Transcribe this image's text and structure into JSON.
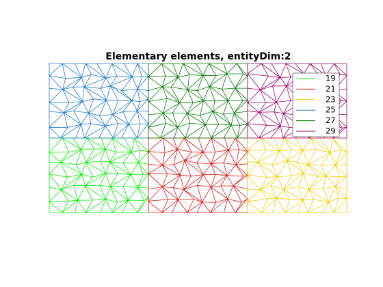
{
  "chart_data": {
    "type": "mesh",
    "title": "Elementary elements, entityDim:2",
    "series": [
      {
        "name": "19",
        "color": "#00ee00"
      },
      {
        "name": "21",
        "color": "#e01010"
      },
      {
        "name": "23",
        "color": "#f2cc00"
      },
      {
        "name": "25",
        "color": "#1f78d0"
      },
      {
        "name": "27",
        "color": "#007a00"
      },
      {
        "name": "29",
        "color": "#a0006a"
      }
    ]
  }
}
